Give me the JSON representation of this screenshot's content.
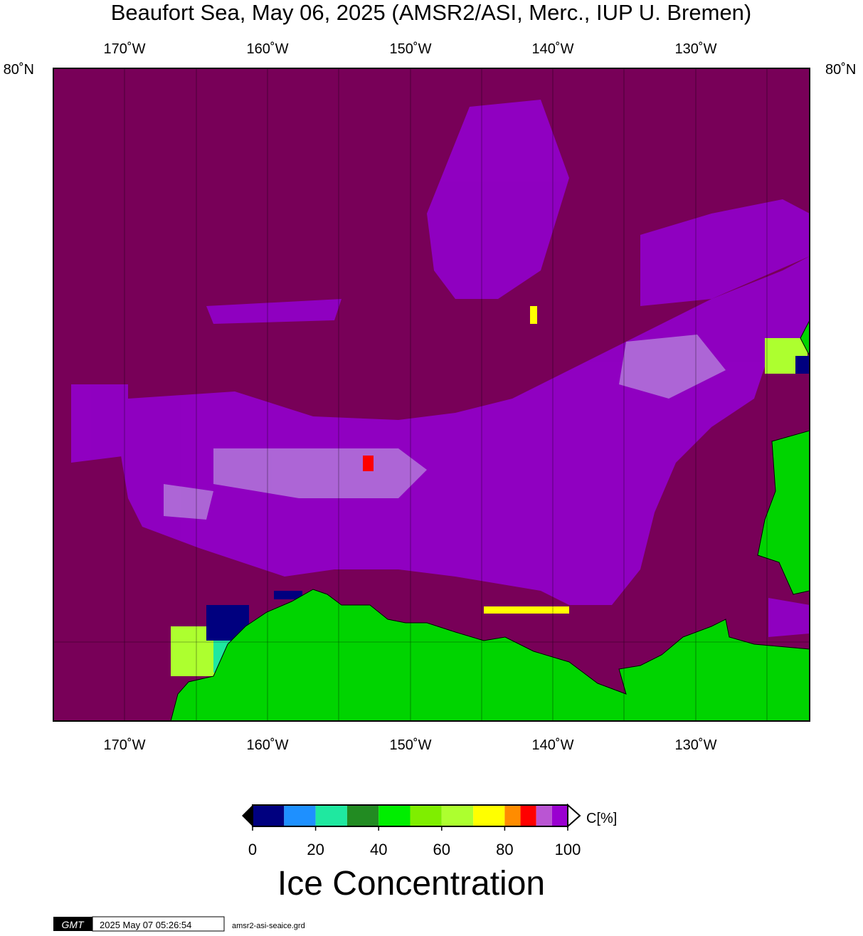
{
  "header": {
    "title": "Beaufort Sea, May 06, 2025 (AMSR2/ASI, Merc., IUP U. Bremen)"
  },
  "map": {
    "top_labels": [
      "170˚W",
      "160˚W",
      "150˚W",
      "140˚W",
      "130˚W"
    ],
    "bottom_labels": [
      "170˚W",
      "160˚W",
      "150˚W",
      "140˚W",
      "130˚W"
    ],
    "lat_label_left": "80˚N",
    "lat_label_right": "80˚N"
  },
  "colorbar": {
    "bins": [
      0,
      10,
      20,
      30,
      40,
      50,
      60,
      70,
      80,
      85,
      90,
      95,
      100
    ],
    "colors": [
      "#00007f",
      "#1e90ff",
      "#1fe8a0",
      "#228b22",
      "#00ee00",
      "#7fee00",
      "#adff2f",
      "#ffff00",
      "#ff8c00",
      "#ff0000",
      "#ba55d3",
      "#9a00d0"
    ],
    "ticks": [
      0,
      20,
      40,
      60,
      80,
      100
    ],
    "unit": "C[%]",
    "caption": "Ice Concentration"
  },
  "footer": {
    "logo": "GMT",
    "timestamp": "2025 May 07 05:26:54",
    "filename": "amsr2-asi-seaice.grd"
  }
}
